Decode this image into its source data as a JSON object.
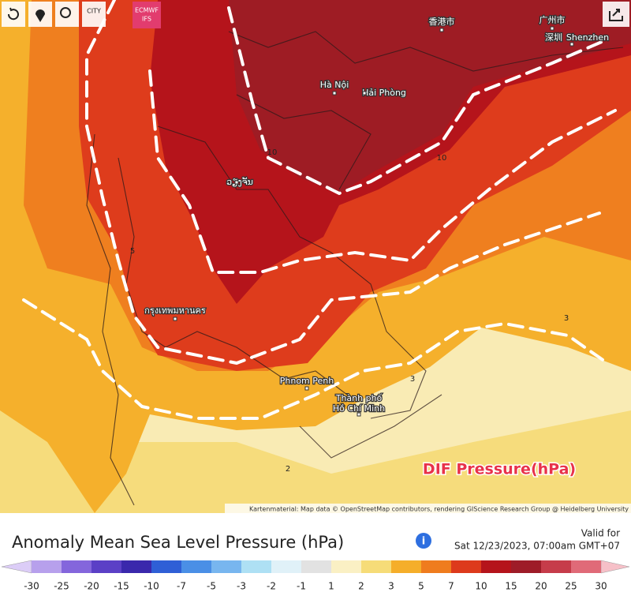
{
  "toolbar": {
    "city_button": "CITY",
    "model_badge": [
      "ECMWF",
      "IFS"
    ]
  },
  "map": {
    "places": [
      "香港市",
      "广州市",
      "深圳",
      "Shenzhen",
      "Hà Nội",
      "Hải Phòng",
      "ວຽງຈັນ",
      "กรุงเทพมหานคร",
      "Phnom Penh",
      "Thành phố",
      "Hồ Chí Minh"
    ],
    "contour_labels": [
      "10",
      "10",
      "5",
      "3",
      "3",
      "2"
    ],
    "overlay_label": "DIF Pressure(hPa)",
    "attribution": "Kartenmaterial: Map data © OpenStreetMap contributors, rendering GIScience Research Group @ Heidelberg University"
  },
  "legend": {
    "title": "Anomaly Mean Sea Level Pressure (hPa)",
    "valid_label": "Valid for",
    "valid_time": "Sat 12/23/2023, 07:00am GMT+07",
    "ticks": [
      -30,
      -25,
      -20,
      -15,
      -10,
      -7,
      -5,
      -3,
      -2,
      -1,
      1,
      2,
      3,
      5,
      7,
      10,
      15,
      20,
      25,
      30
    ],
    "colors": [
      "#b7a0ec",
      "#8466dc",
      "#5b40c6",
      "#3a28ac",
      "#2f5fd6",
      "#4a8fe6",
      "#78b6ef",
      "#aee0f4",
      "#e0f1f8",
      "#e2e2e2",
      "#faf0c4",
      "#f6dc78",
      "#f5ae2a",
      "#ef7c1e",
      "#dd3a1c",
      "#b5141b",
      "#9e1c28",
      "#c63c4a",
      "#e06a78"
    ],
    "under_color": "#dccdf7",
    "over_color": "#f6c0c8"
  }
}
